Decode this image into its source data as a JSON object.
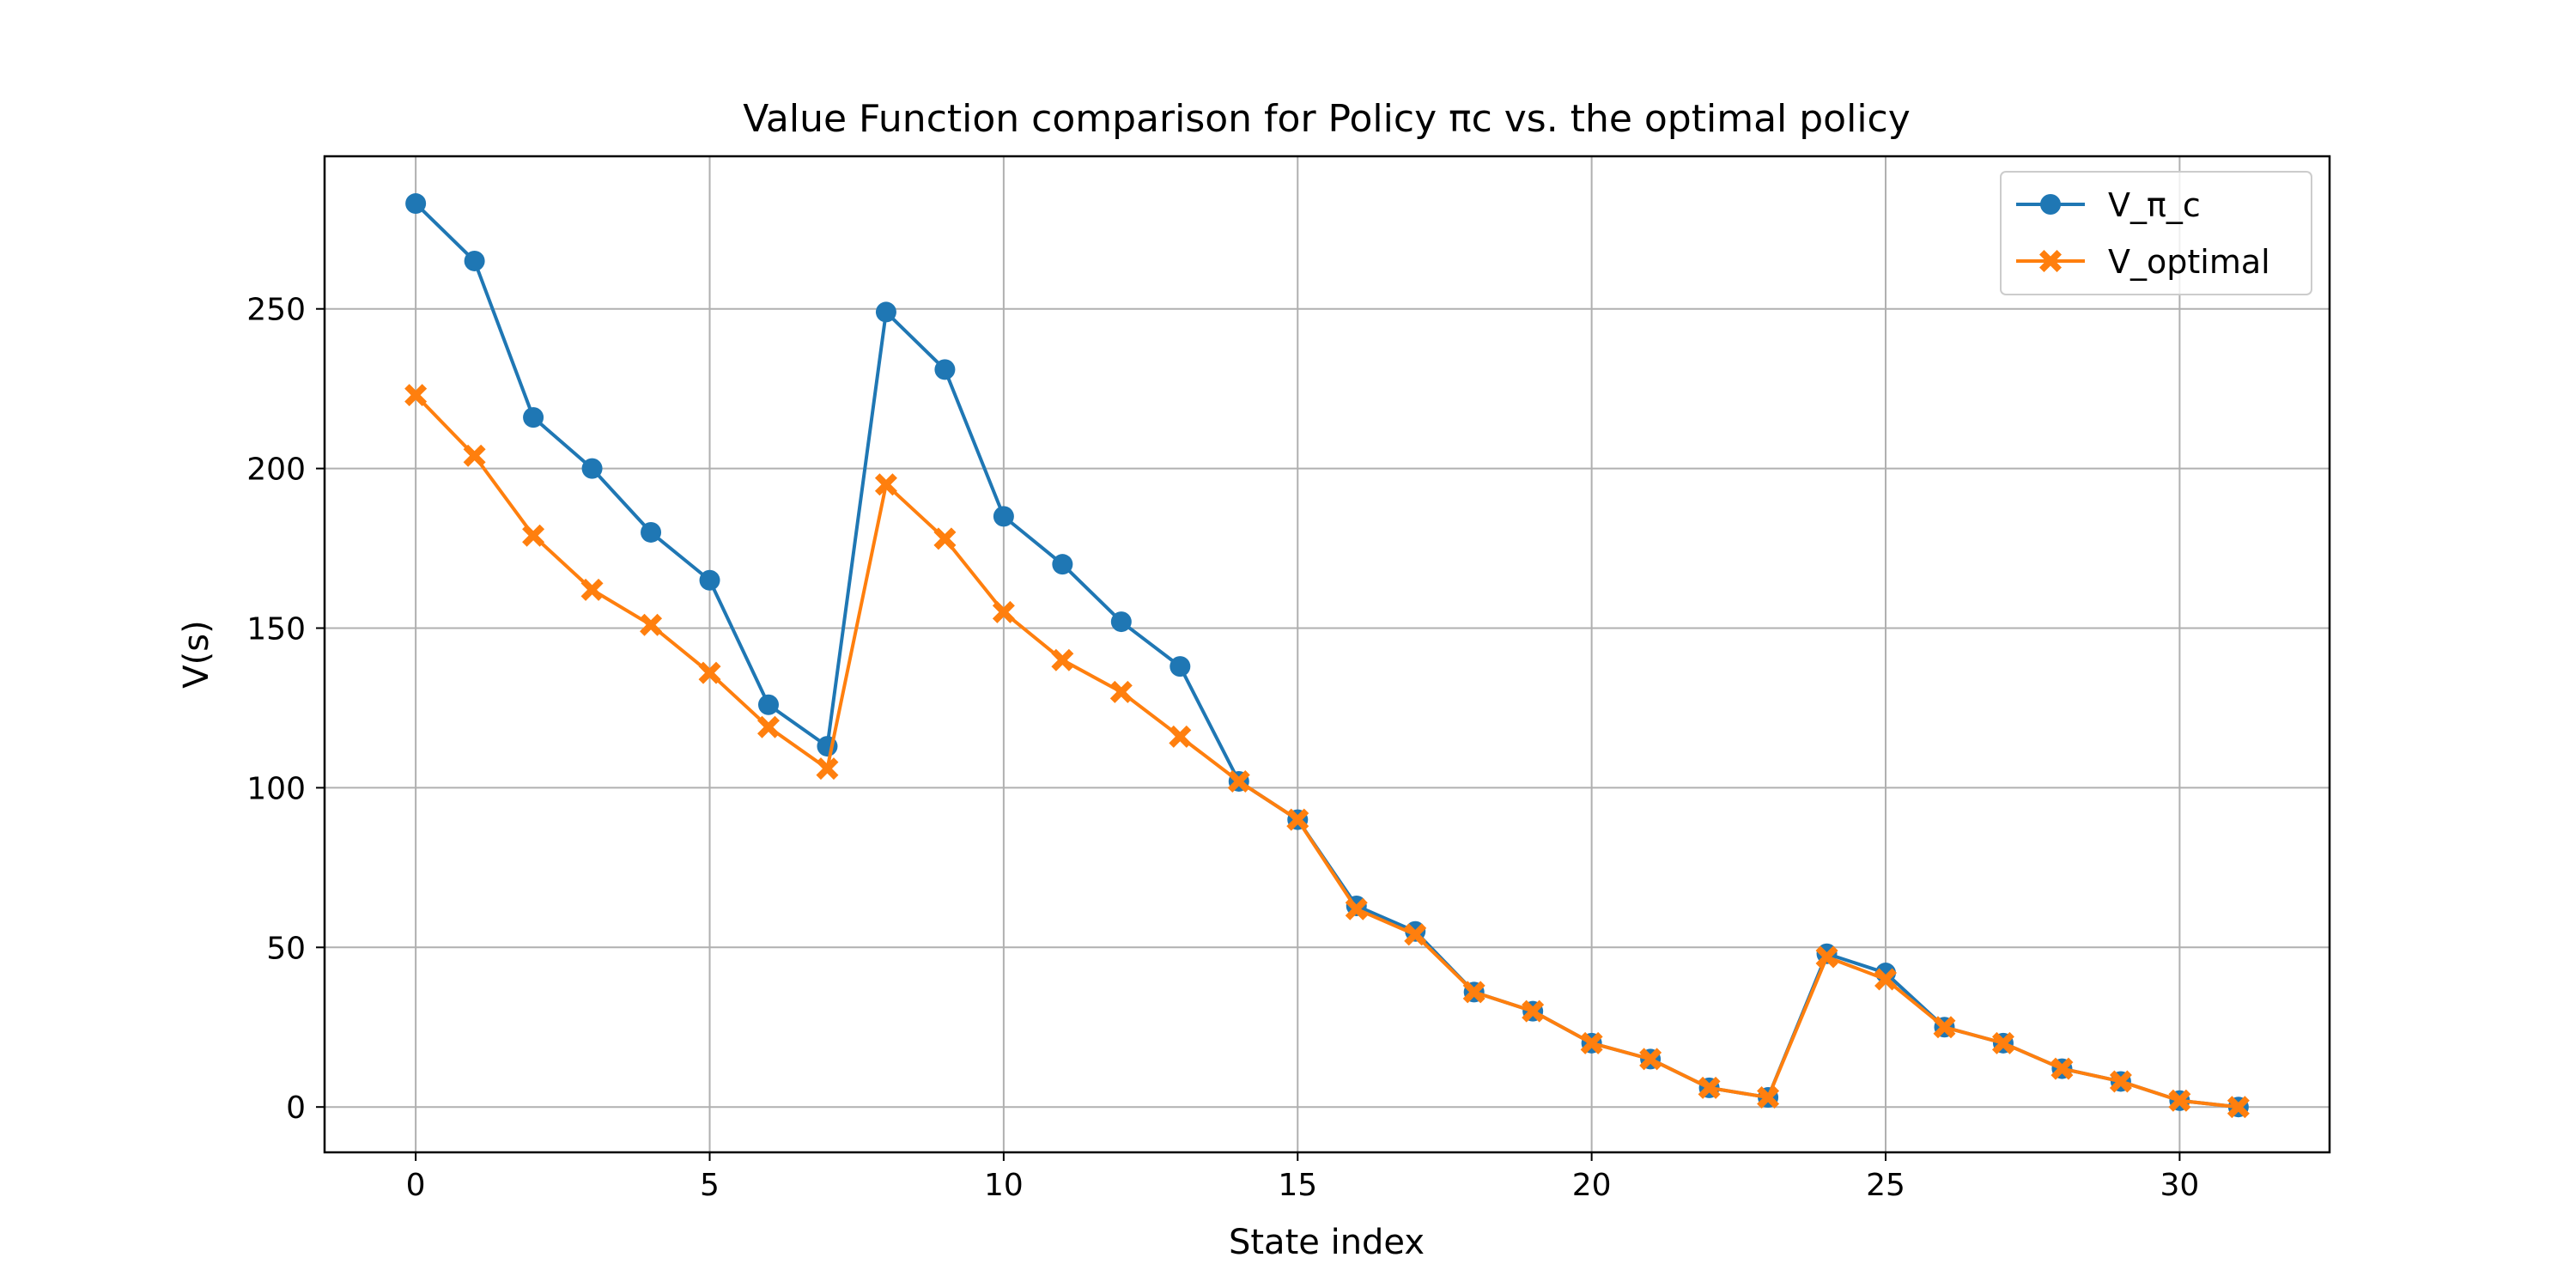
{
  "chart_data": {
    "type": "line",
    "title": "Value Function comparison for Policy πc vs. the optimal policy",
    "xlabel": "State index",
    "ylabel": "V(s)",
    "xlim": [
      -1.55,
      32.55
    ],
    "ylim": [
      -14.2,
      297.8
    ],
    "xticks": [
      0,
      5,
      10,
      15,
      20,
      25,
      30
    ],
    "yticks": [
      0,
      50,
      100,
      150,
      200,
      250
    ],
    "grid": true,
    "legend_position": "top-right",
    "x": [
      0,
      1,
      2,
      3,
      4,
      5,
      6,
      7,
      8,
      9,
      10,
      11,
      12,
      13,
      14,
      15,
      16,
      17,
      18,
      19,
      20,
      21,
      22,
      23,
      24,
      25,
      26,
      27,
      28,
      29,
      30,
      31
    ],
    "series": [
      {
        "name": "V_π_c",
        "color": "#1f77b4",
        "marker": "circle",
        "values": [
          283,
          265,
          216,
          200,
          180,
          165,
          126,
          113,
          249,
          231,
          185,
          170,
          152,
          138,
          102,
          90,
          63,
          55,
          36,
          30,
          20,
          15,
          6,
          3,
          48,
          42,
          25,
          20,
          12,
          8,
          2,
          0
        ]
      },
      {
        "name": "V_optimal",
        "color": "#ff7f0e",
        "marker": "x-filled",
        "values": [
          223,
          204,
          179,
          162,
          151,
          136,
          119,
          106,
          195,
          178,
          155,
          140,
          130,
          116,
          102,
          90,
          62,
          54,
          36,
          30,
          20,
          15,
          6,
          3,
          47,
          40,
          25,
          20,
          12,
          8,
          2,
          0
        ]
      }
    ]
  }
}
